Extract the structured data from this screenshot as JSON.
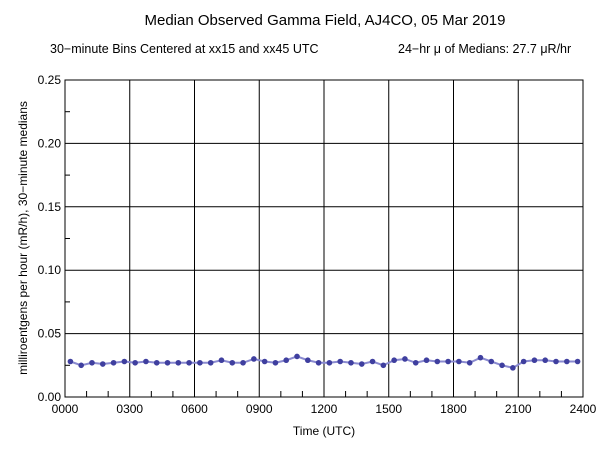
{
  "chart_data": {
    "type": "line",
    "title": "Median Observed Gamma Field, AJ4CO, 05 Mar 2019",
    "subtitle_left": "30−minute Bins Centered at xx15 and xx45 UTC",
    "subtitle_right": "24−hr μ of Medians: 27.7 μR/hr",
    "xlabel": "Time (UTC)",
    "ylabel": "milliroentgens per hour (mR/h), 30−minute medians",
    "xlim": [
      0,
      24
    ],
    "ylim": [
      0,
      0.25
    ],
    "x_tick_labels": [
      "0000",
      "0300",
      "0600",
      "0900",
      "1200",
      "1500",
      "1800",
      "2100",
      "2400"
    ],
    "y_tick_labels": [
      "0.00",
      "0.05",
      "0.10",
      "0.15",
      "0.20",
      "0.25"
    ],
    "grid": true,
    "series_color": "#3f3f9f",
    "x": [
      0.25,
      0.75,
      1.25,
      1.75,
      2.25,
      2.75,
      3.25,
      3.75,
      4.25,
      4.75,
      5.25,
      5.75,
      6.25,
      6.75,
      7.25,
      7.75,
      8.25,
      8.75,
      9.25,
      9.75,
      10.25,
      10.75,
      11.25,
      11.75,
      12.25,
      12.75,
      13.25,
      13.75,
      14.25,
      14.75,
      15.25,
      15.75,
      16.25,
      16.75,
      17.25,
      17.75,
      18.25,
      18.75,
      19.25,
      19.75,
      20.25,
      20.75,
      21.25,
      21.75,
      22.25,
      22.75,
      23.25,
      23.75
    ],
    "values": [
      0.028,
      0.025,
      0.027,
      0.026,
      0.027,
      0.028,
      0.027,
      0.028,
      0.027,
      0.027,
      0.027,
      0.027,
      0.027,
      0.027,
      0.029,
      0.027,
      0.027,
      0.03,
      0.028,
      0.027,
      0.029,
      0.032,
      0.029,
      0.027,
      0.027,
      0.028,
      0.027,
      0.026,
      0.028,
      0.025,
      0.029,
      0.03,
      0.027,
      0.029,
      0.028,
      0.028,
      0.028,
      0.027,
      0.031,
      0.028,
      0.025,
      0.023,
      0.028,
      0.029,
      0.029,
      0.028,
      0.028,
      0.028
    ]
  }
}
